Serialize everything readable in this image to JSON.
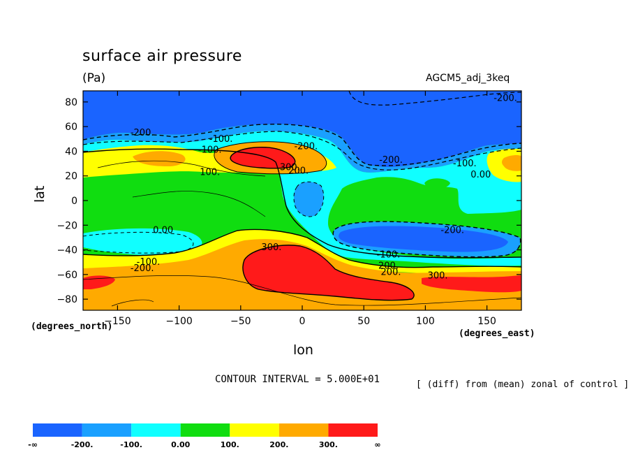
{
  "header": {
    "title": "surface air pressure",
    "units": "(Pa)",
    "run": "AGCM5_adj_3keq"
  },
  "footer": {
    "contour_interval": "CONTOUR INTERVAL = 5.000E+01",
    "note": "[ (diff) from (mean) zonal of control ]"
  },
  "chart_data": {
    "type": "heatmap",
    "title": "surface air pressure",
    "units": "(Pa)",
    "xlabel": "lon",
    "ylabel": "lat",
    "x_units_label": "(degrees_east)",
    "y_units_label": "(degrees_north)",
    "xlim": [
      -178,
      178
    ],
    "ylim": [
      -89,
      89
    ],
    "x_ticks": [
      -150,
      -100,
      -50,
      0,
      50,
      100,
      150
    ],
    "y_ticks": [
      80,
      60,
      40,
      20,
      0,
      -20,
      -40,
      -60,
      -80
    ],
    "colorbar": {
      "levels": [
        "-∞",
        "-200.",
        "-100.",
        "0.00",
        "100.",
        "200.",
        "300.",
        "∞"
      ],
      "colors": [
        "#1a64ff",
        "#1aa0ff",
        "#10ffff",
        "#10dd10",
        "#ffff00",
        "#ffaa00",
        "#ff1a1a"
      ]
    },
    "contour_labels": [
      {
        "text": "-200.",
        "lon": 165,
        "lat": 83
      },
      {
        "text": "-200.",
        "lon": -130,
        "lat": 55
      },
      {
        "text": "-100.",
        "lon": -66,
        "lat": 50
      },
      {
        "text": "-100.",
        "lon": -75,
        "lat": 41
      },
      {
        "text": "100.",
        "lon": -75,
        "lat": 23
      },
      {
        "text": "-200.",
        "lon": 3,
        "lat": 44
      },
      {
        "text": "300.",
        "lon": -10,
        "lat": 27
      },
      {
        "text": "200.",
        "lon": -3,
        "lat": 24
      },
      {
        "text": "-200.",
        "lon": 72,
        "lat": 33
      },
      {
        "text": "-100.",
        "lon": 132,
        "lat": 30
      },
      {
        "text": "0.00",
        "lon": 145,
        "lat": 21
      },
      {
        "text": "-200.",
        "lon": 122,
        "lat": -24
      },
      {
        "text": "0.00",
        "lon": -113,
        "lat": -24
      },
      {
        "text": "300.",
        "lon": -25,
        "lat": -38
      },
      {
        "text": "-100.",
        "lon": -125,
        "lat": -50
      },
      {
        "text": "-200.",
        "lon": -130,
        "lat": -55
      },
      {
        "text": "-100.",
        "lon": 70,
        "lat": -44
      },
      {
        "text": "200.",
        "lon": 70,
        "lat": -53
      },
      {
        "text": "200.",
        "lon": 72,
        "lat": -58
      },
      {
        "text": "300.",
        "lon": 110,
        "lat": -61
      }
    ]
  }
}
